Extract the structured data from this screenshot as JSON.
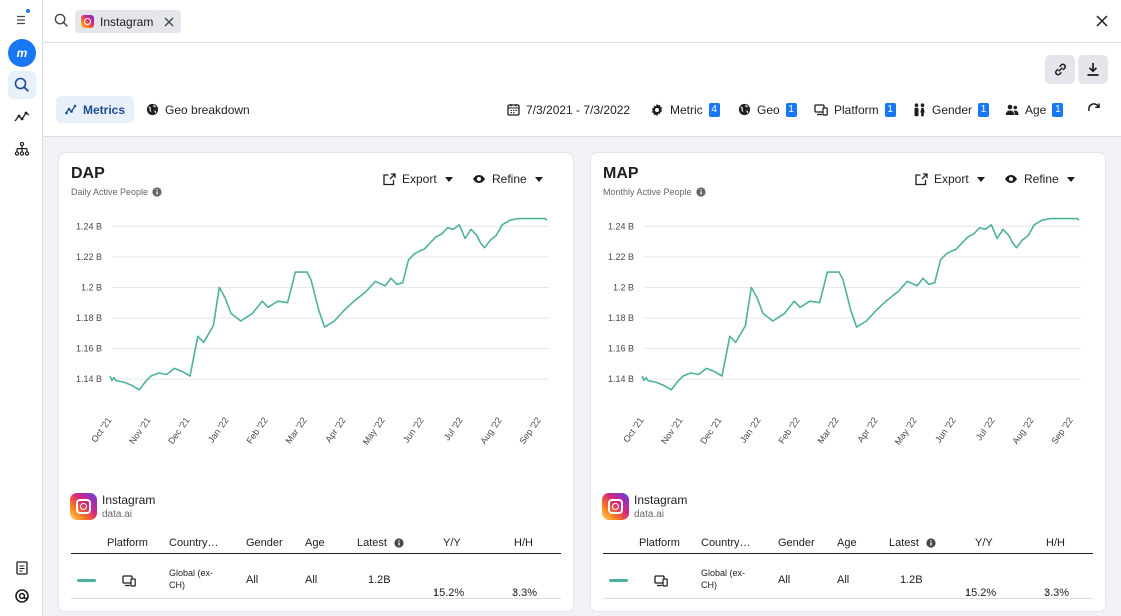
{
  "search": {
    "chip_label": "Instagram"
  },
  "tabs": [
    {
      "label": "Metrics"
    },
    {
      "label": "Geo breakdown"
    }
  ],
  "filters": {
    "date_range": "7/3/2021 - 7/3/2022",
    "metric": {
      "label": "Metric",
      "count": "4"
    },
    "geo": {
      "label": "Geo",
      "count": "1"
    },
    "platform": {
      "label": "Platform",
      "count": "1"
    },
    "gender": {
      "label": "Gender",
      "count": "1"
    },
    "age": {
      "label": "Age",
      "count": "1"
    }
  },
  "colors": {
    "accent": "#1877f2",
    "series": "#4eb19a",
    "positive": "#2e9c63"
  },
  "cards": [
    {
      "title": "DAP",
      "subtitle": "Daily Active People",
      "export_label": "Export",
      "refine_label": "Refine",
      "app": {
        "name": "Instagram",
        "source": "data.ai"
      },
      "table": {
        "headers": [
          "Platform",
          "Country…",
          "Gender",
          "Age",
          "Latest",
          "Y/Y",
          "H/H"
        ],
        "row": {
          "country": "Global (ex-CH)",
          "gender": "All",
          "age": "All",
          "latest": "1.2B",
          "yy": "15.2%",
          "hh": "3.3%"
        }
      }
    },
    {
      "title": "MAP",
      "subtitle": "Monthly Active People",
      "export_label": "Export",
      "refine_label": "Refine",
      "app": {
        "name": "Instagram",
        "source": "data.ai"
      },
      "table": {
        "headers": [
          "Platform",
          "Country…",
          "Gender",
          "Age",
          "Latest",
          "Y/Y",
          "H/H"
        ],
        "row": {
          "country": "Global (ex-CH)",
          "gender": "All",
          "age": "All",
          "latest": "1.2B",
          "yy": "15.2%",
          "hh": "3.3%"
        }
      }
    }
  ],
  "chart_data": [
    {
      "type": "line",
      "title": "DAP",
      "ylabel": "Daily Active People",
      "ylim": [
        1.125,
        1.25
      ],
      "yticks": [
        1.14,
        1.16,
        1.18,
        1.2,
        1.22,
        1.24
      ],
      "ytick_labels": [
        "1.14 B",
        "1.16 B",
        "1.18 B",
        "1.2 B",
        "1.22 B",
        "1.24 B"
      ],
      "xlim": [
        0,
        11.2
      ],
      "xticks": [
        0,
        1,
        2,
        3,
        4,
        5,
        6,
        7,
        8,
        9,
        10,
        11
      ],
      "xtick_labels": [
        "Oct '21",
        "Nov '21",
        "Dec '21",
        "Jan '22",
        "Feb '22",
        "Mar '22",
        "Apr '22",
        "May '22",
        "Jun '22",
        "Jul '22",
        "Aug '22",
        "Sep '22"
      ],
      "series": [
        {
          "name": "Instagram",
          "x": [
            -0.05,
            0,
            0.05,
            0.1,
            0.3,
            0.5,
            0.7,
            0.85,
            1,
            1.2,
            1.4,
            1.6,
            1.8,
            2,
            2.1,
            2.2,
            2.35,
            2.6,
            2.75,
            2.9,
            3.05,
            3.3,
            3.6,
            3.85,
            4,
            4.25,
            4.5,
            4.7,
            5,
            5.1,
            5.3,
            5.45,
            5.7,
            5.95,
            6.2,
            6.5,
            6.75,
            7,
            7.15,
            7.3,
            7.45,
            7.6,
            7.75,
            7.9,
            8,
            8.15,
            8.3,
            8.45,
            8.6,
            8.75,
            8.9,
            9.05,
            9.2,
            9.35,
            9.45,
            9.55,
            9.7,
            9.85,
            10,
            10.2,
            10.4,
            10.55,
            10.7,
            10.85,
            11,
            11.1,
            11.15
          ],
          "values": [
            1.142,
            1.139,
            1.141,
            1.139,
            1.138,
            1.136,
            1.133,
            1.138,
            1.142,
            1.144,
            1.143,
            1.147,
            1.145,
            1.142,
            1.155,
            1.168,
            1.164,
            1.175,
            1.2,
            1.193,
            1.183,
            1.178,
            1.183,
            1.191,
            1.187,
            1.191,
            1.19,
            1.21,
            1.21,
            1.205,
            1.185,
            1.174,
            1.178,
            1.185,
            1.191,
            1.197,
            1.204,
            1.201,
            1.206,
            1.202,
            1.203,
            1.218,
            1.222,
            1.224,
            1.225,
            1.229,
            1.233,
            1.235,
            1.239,
            1.238,
            1.241,
            1.232,
            1.238,
            1.234,
            1.229,
            1.226,
            1.231,
            1.234,
            1.241,
            1.244,
            1.245,
            1.245,
            1.245,
            1.245,
            1.245,
            1.245,
            1.244
          ]
        }
      ]
    },
    {
      "type": "line",
      "title": "MAP",
      "ylabel": "Monthly Active People",
      "ylim": [
        1.125,
        1.25
      ],
      "yticks": [
        1.14,
        1.16,
        1.18,
        1.2,
        1.22,
        1.24
      ],
      "ytick_labels": [
        "1.14 B",
        "1.16 B",
        "1.18 B",
        "1.2 B",
        "1.22 B",
        "1.24 B"
      ],
      "xlim": [
        0,
        11.2
      ],
      "xticks": [
        0,
        1,
        2,
        3,
        4,
        5,
        6,
        7,
        8,
        9,
        10,
        11
      ],
      "xtick_labels": [
        "Oct '21",
        "Nov '21",
        "Dec '21",
        "Jan '22",
        "Feb '22",
        "Mar '22",
        "Apr '22",
        "May '22",
        "Jun '22",
        "Jul '22",
        "Aug '22",
        "Sep '22"
      ],
      "series": [
        {
          "name": "Instagram",
          "x": [
            -0.05,
            0,
            0.05,
            0.1,
            0.3,
            0.5,
            0.7,
            0.85,
            1,
            1.2,
            1.4,
            1.6,
            1.8,
            2,
            2.1,
            2.2,
            2.35,
            2.6,
            2.75,
            2.9,
            3.05,
            3.3,
            3.6,
            3.85,
            4,
            4.25,
            4.5,
            4.7,
            5,
            5.1,
            5.3,
            5.45,
            5.7,
            5.95,
            6.2,
            6.5,
            6.75,
            7,
            7.15,
            7.3,
            7.45,
            7.6,
            7.75,
            7.9,
            8,
            8.15,
            8.3,
            8.45,
            8.6,
            8.75,
            8.9,
            9.05,
            9.2,
            9.35,
            9.45,
            9.55,
            9.7,
            9.85,
            10,
            10.2,
            10.4,
            10.55,
            10.7,
            10.85,
            11,
            11.1,
            11.15
          ],
          "values": [
            1.142,
            1.139,
            1.141,
            1.139,
            1.138,
            1.136,
            1.133,
            1.138,
            1.142,
            1.144,
            1.143,
            1.147,
            1.145,
            1.142,
            1.155,
            1.168,
            1.164,
            1.175,
            1.2,
            1.193,
            1.183,
            1.178,
            1.183,
            1.191,
            1.187,
            1.191,
            1.19,
            1.21,
            1.21,
            1.205,
            1.185,
            1.174,
            1.178,
            1.185,
            1.191,
            1.197,
            1.204,
            1.201,
            1.206,
            1.202,
            1.203,
            1.218,
            1.222,
            1.224,
            1.225,
            1.229,
            1.233,
            1.235,
            1.239,
            1.238,
            1.241,
            1.232,
            1.238,
            1.234,
            1.229,
            1.226,
            1.231,
            1.234,
            1.241,
            1.244,
            1.245,
            1.245,
            1.245,
            1.245,
            1.245,
            1.245,
            1.244
          ]
        }
      ]
    }
  ]
}
